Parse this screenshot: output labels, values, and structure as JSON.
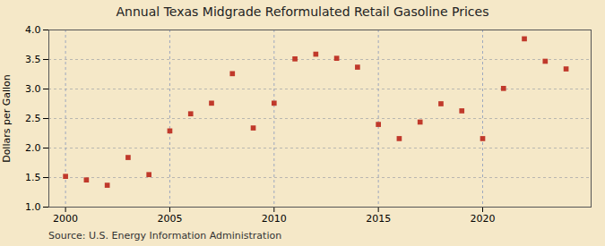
{
  "chart_data": {
    "type": "scatter",
    "title": "Annual Texas Midgrade Reformulated Retail Gasoline Prices",
    "ylabel": "Dollars per Gallon",
    "source": "Source: U.S. Energy Information Administration",
    "x": [
      2000,
      2001,
      2002,
      2003,
      2004,
      2005,
      2006,
      2007,
      2008,
      2009,
      2010,
      2011,
      2012,
      2013,
      2014,
      2015,
      2016,
      2017,
      2018,
      2019,
      2020,
      2021,
      2022,
      2023,
      2024
    ],
    "values": [
      1.52,
      1.46,
      1.37,
      1.84,
      1.55,
      2.29,
      2.58,
      2.76,
      3.26,
      2.34,
      2.76,
      3.51,
      3.59,
      3.52,
      3.37,
      2.4,
      2.16,
      2.44,
      2.75,
      2.63,
      2.16,
      3.01,
      3.85,
      3.47,
      3.34
    ],
    "color": "#c0392b",
    "marker": "square",
    "xlim": [
      1999.2,
      2025.2
    ],
    "ylim": [
      1.0,
      4.0
    ],
    "xticks": [
      2000,
      2005,
      2010,
      2015,
      2020
    ],
    "yticks": [
      {
        "value": 1.0,
        "label": "1.0"
      },
      {
        "value": 1.5,
        "label": "1.5"
      },
      {
        "value": 2.0,
        "label": "2.0"
      },
      {
        "value": 2.5,
        "label": "2.5"
      },
      {
        "value": 3.0,
        "label": "3.0"
      },
      {
        "value": 3.5,
        "label": "3.5"
      },
      {
        "value": 4.0,
        "label": "4.0"
      }
    ],
    "grid": true
  }
}
